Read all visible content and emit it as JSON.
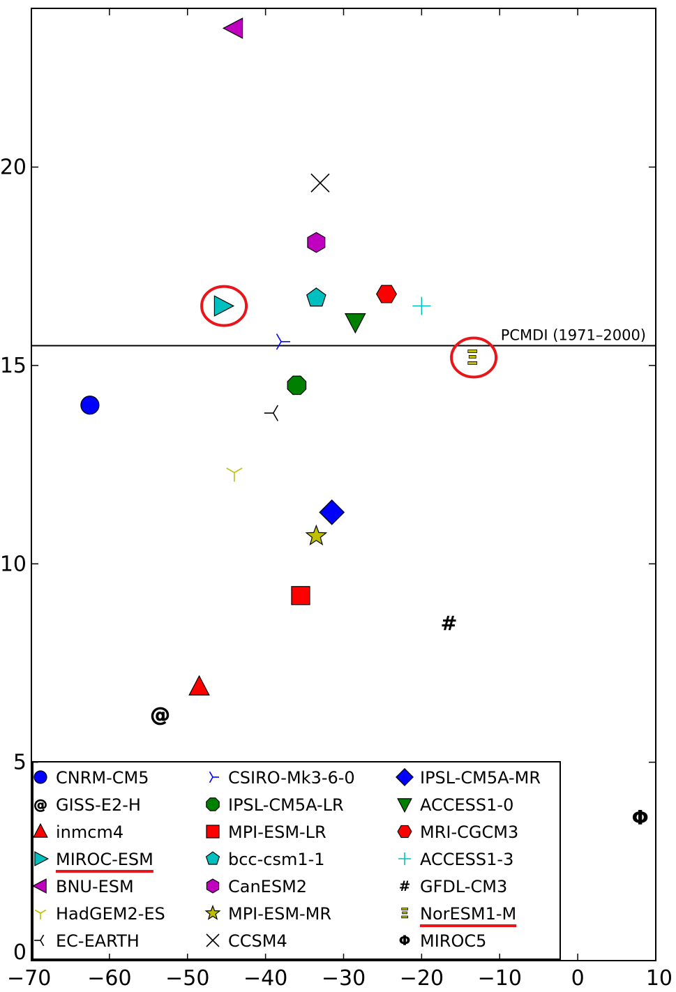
{
  "chart_data": {
    "type": "scatter",
    "title": "",
    "xlabel": "",
    "ylabel": "",
    "xlim": [
      -70,
      10
    ],
    "ylim": [
      0,
      24
    ],
    "xticks": [
      -70,
      -60,
      -50,
      -40,
      -30,
      -20,
      -10,
      0,
      10
    ],
    "yticks": [
      0,
      5,
      10,
      15,
      20
    ],
    "xtick_labels": [
      "−70",
      "−60",
      "−50",
      "−40",
      "−30",
      "−20",
      "−10",
      "0",
      "10"
    ],
    "ytick_labels": [
      "0",
      "5",
      "10",
      "15",
      "20"
    ],
    "grid": false,
    "legend_position": "bottom-left",
    "reference_line": {
      "y": 15.5,
      "label": "PCMDI (1971–2000)"
    },
    "highlighted": [
      "MIROC-ESM",
      "NorESM1-M"
    ],
    "highlight_color": "#e8161b",
    "series": [
      {
        "name": "CNRM-CM5",
        "x": -62.5,
        "y": 14.0,
        "marker": "circle",
        "color": "#0000ff"
      },
      {
        "name": "GISS-E2-H",
        "x": -53.5,
        "y": 6.2,
        "marker": "at-sign",
        "color": "#000000"
      },
      {
        "name": "inmcm4",
        "x": -48.5,
        "y": 6.9,
        "marker": "triangle-up",
        "color": "#ff0000"
      },
      {
        "name": "MIROC-ESM",
        "x": -45.5,
        "y": 16.5,
        "marker": "triangle-right",
        "color": "#00bfbf"
      },
      {
        "name": "BNU-ESM",
        "x": -44.0,
        "y": 23.5,
        "marker": "triangle-left",
        "color": "#bf00bf"
      },
      {
        "name": "HadGEM2-ES",
        "x": -44.0,
        "y": 12.3,
        "marker": "tri-down",
        "color": "#bfbf00"
      },
      {
        "name": "EC-EARTH",
        "x": -39.0,
        "y": 13.8,
        "marker": "tri-left",
        "color": "#000000"
      },
      {
        "name": "CSIRO-Mk3-6-0",
        "x": -38.0,
        "y": 15.6,
        "marker": "tri-right",
        "color": "#0000ff"
      },
      {
        "name": "IPSL-CM5A-LR",
        "x": -36.0,
        "y": 14.5,
        "marker": "octagon",
        "color": "#008000"
      },
      {
        "name": "MPI-ESM-LR",
        "x": -35.5,
        "y": 9.2,
        "marker": "square",
        "color": "#ff0000"
      },
      {
        "name": "bcc-csm1-1",
        "x": -33.5,
        "y": 16.7,
        "marker": "pentagon",
        "color": "#00bfbf"
      },
      {
        "name": "CanESM2",
        "x": -33.5,
        "y": 18.1,
        "marker": "hexagon",
        "color": "#bf00bf"
      },
      {
        "name": "MPI-ESM-MR",
        "x": -33.5,
        "y": 10.7,
        "marker": "star",
        "color": "#bfbf00"
      },
      {
        "name": "CCSM4",
        "x": -33.0,
        "y": 19.6,
        "marker": "x",
        "color": "#000000"
      },
      {
        "name": "IPSL-CM5A-MR",
        "x": -31.5,
        "y": 11.3,
        "marker": "diamond",
        "color": "#0000ff"
      },
      {
        "name": "ACCESS1-0",
        "x": -28.5,
        "y": 16.1,
        "marker": "triangle-down",
        "color": "#008000"
      },
      {
        "name": "MRI-CGCM3",
        "x": -24.5,
        "y": 16.8,
        "marker": "hexagon-flat",
        "color": "#ff0000"
      },
      {
        "name": "ACCESS1-3",
        "x": -20.0,
        "y": 16.5,
        "marker": "plus",
        "color": "#00bfbf"
      },
      {
        "name": "GFDL-CM3",
        "x": -16.5,
        "y": 8.5,
        "marker": "hash",
        "color": "#000000"
      },
      {
        "name": "NorESM1-M",
        "x": -13.5,
        "y": 15.2,
        "marker": "xi",
        "color": "#bfbf00"
      },
      {
        "name": "MIROC5",
        "x": 8.0,
        "y": 3.6,
        "marker": "phi",
        "color": "#000000"
      }
    ]
  }
}
